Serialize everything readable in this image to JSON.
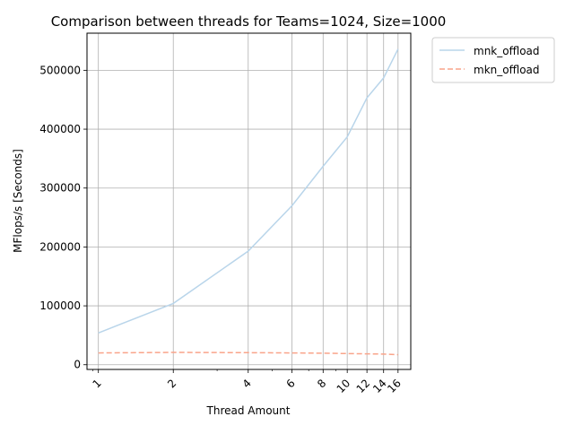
{
  "chart_data": {
    "type": "line",
    "title": "Comparison between threads for Teams=1024, Size=1000",
    "xlabel": "Thread Amount",
    "ylabel": "MFlops/s [Seconds]",
    "x_scale": "log",
    "x": [
      1,
      2,
      4,
      6,
      8,
      10,
      12,
      14,
      16
    ],
    "xtick_labels": [
      "1",
      "2",
      "4",
      "6",
      "8",
      "10",
      "12",
      "14",
      "16"
    ],
    "yticks": [
      0,
      100000,
      200000,
      300000,
      400000,
      500000
    ],
    "ytick_labels": [
      "0",
      "100000",
      "200000",
      "300000",
      "400000",
      "500000"
    ],
    "ylim": [
      -8000,
      563000
    ],
    "xlim": [
      0.9,
      18.0
    ],
    "grid": true,
    "legend_position": "outside-top-right",
    "series": [
      {
        "name": "mnk_offload",
        "values": [
          54000,
          104000,
          193000,
          270000,
          337000,
          387000,
          453000,
          487000,
          536000
        ],
        "color": "#b9d5ea",
        "dash": "solid"
      },
      {
        "name": "mkn_offload",
        "values": [
          20000,
          21000,
          20500,
          20000,
          19500,
          19000,
          18500,
          18000,
          17000
        ],
        "color": "#f9a48a",
        "dash": "dashed"
      }
    ]
  }
}
